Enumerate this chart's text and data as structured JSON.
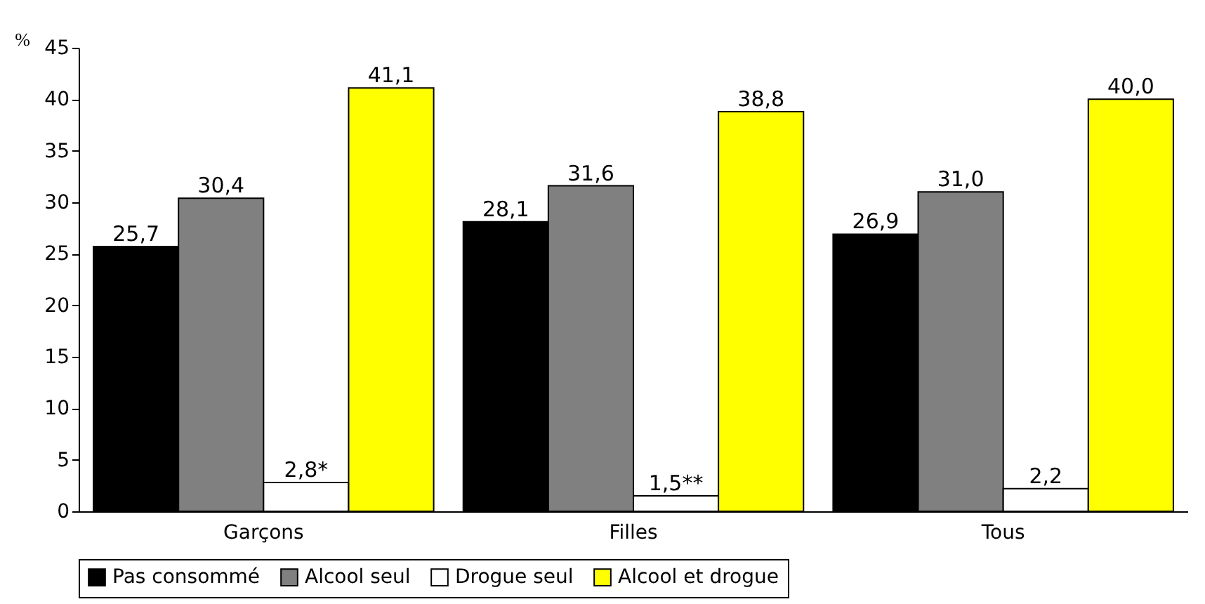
{
  "chart_data": {
    "type": "bar",
    "ylabel": "%",
    "categories": [
      "Garçons",
      "Filles",
      "Tous"
    ],
    "series": [
      {
        "name": "Pas consommé",
        "color": "#000000",
        "values": [
          25.7,
          28.1,
          26.9
        ],
        "value_labels": [
          "25,7",
          "28,1",
          "26,9"
        ]
      },
      {
        "name": "Alcool seul",
        "color": "#808080",
        "values": [
          30.4,
          31.6,
          31.0
        ],
        "value_labels": [
          "30,4",
          "31,6",
          "31,0"
        ]
      },
      {
        "name": "Drogue seul",
        "color": "#ffffff",
        "values": [
          2.8,
          1.5,
          2.2
        ],
        "value_labels": [
          "2,8*",
          "1,5**",
          "2,2"
        ]
      },
      {
        "name": "Alcool et drogue",
        "color": "#ffff00",
        "values": [
          41.1,
          38.8,
          40.0
        ],
        "value_labels": [
          "41,1",
          "38,8",
          "40,0"
        ]
      }
    ],
    "ylim": [
      0,
      45
    ],
    "yticks": [
      0,
      5,
      10,
      15,
      20,
      25,
      30,
      35,
      40,
      45
    ],
    "legend": "bottom"
  }
}
